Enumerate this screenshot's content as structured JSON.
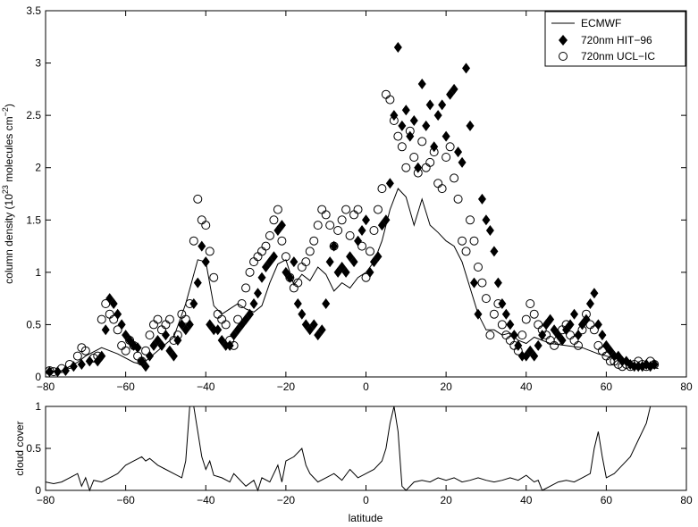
{
  "chart_data": [
    {
      "type": "scatter",
      "ylabel_main": "column density (10",
      "ylabel_sup1": "23",
      "ylabel_mid": " molecules cm",
      "ylabel_sup2": "−2",
      "ylabel_end": ")",
      "xlabel": "",
      "xlim": [
        -80,
        80
      ],
      "ylim": [
        0,
        3.5
      ],
      "xticks": [
        "−80",
        "−60",
        "−40",
        "−20",
        "0",
        "20",
        "40",
        "60",
        "80"
      ],
      "yticks": [
        "0",
        "0.5",
        "1",
        "1.5",
        "2",
        "2.5",
        "3",
        "3.5"
      ],
      "legend_position": "top-right",
      "legend": [
        "ECMWF",
        "720nm HIT−96",
        "720nm UCL−IC"
      ],
      "series": [
        {
          "name": "ECMWF",
          "mark": "line",
          "x": [
            -80,
            -76,
            -72,
            -70,
            -66,
            -62,
            -58,
            -56,
            -52,
            -48,
            -45,
            -42,
            -40,
            -38,
            -36,
            -32,
            -30,
            -28,
            -26,
            -24,
            -22,
            -20,
            -18,
            -16,
            -14,
            -12,
            -10,
            -8,
            -6,
            -4,
            -2,
            0,
            2,
            4,
            6,
            8,
            10,
            12,
            14,
            16,
            18,
            20,
            22,
            24,
            26,
            28,
            30,
            32,
            34,
            36,
            38,
            40,
            42,
            44,
            46,
            50,
            54,
            58,
            62,
            66,
            70,
            73
          ],
          "y": [
            0.05,
            0.06,
            0.14,
            0.2,
            0.28,
            0.22,
            0.14,
            0.12,
            0.25,
            0.38,
            0.7,
            1.12,
            1.1,
            0.68,
            0.6,
            0.7,
            0.65,
            0.62,
            0.68,
            0.9,
            1.08,
            1.12,
            0.88,
            0.98,
            0.92,
            1.05,
            0.98,
            0.82,
            0.9,
            0.85,
            0.95,
            1.0,
            1.1,
            1.3,
            1.6,
            1.8,
            1.72,
            1.45,
            1.7,
            1.45,
            1.38,
            1.3,
            1.25,
            1.1,
            0.85,
            0.6,
            0.45,
            0.45,
            0.4,
            0.42,
            0.35,
            0.32,
            0.38,
            0.35,
            0.32,
            0.3,
            0.28,
            0.22,
            0.18,
            0.12,
            0.1,
            0.08
          ]
        },
        {
          "name": "720nm HIT−96",
          "mark": "diamond",
          "x": [
            -79,
            -77,
            -75,
            -73,
            -71,
            -69,
            -67,
            -66,
            -65,
            -64,
            -63,
            -62,
            -61,
            -60,
            -59,
            -58,
            -57,
            -56,
            -55,
            -54,
            -53,
            -52,
            -51,
            -50,
            -49,
            -48,
            -47,
            -46,
            -45,
            -44,
            -43,
            -42,
            -41,
            -40,
            -39,
            -38,
            -37,
            -36,
            -35,
            -34,
            -33,
            -32,
            -31,
            -30,
            -29,
            -28,
            -27,
            -26,
            -25,
            -24,
            -23,
            -22,
            -21,
            -20,
            -19,
            -18,
            -17,
            -16,
            -15,
            -14,
            -13,
            -12,
            -11,
            -10,
            -9,
            -8,
            -7,
            -6,
            -5,
            -4,
            -3,
            -2,
            -1,
            0,
            1,
            2,
            3,
            4,
            5,
            6,
            7,
            8,
            9,
            10,
            11,
            12,
            13,
            14,
            15,
            16,
            17,
            18,
            19,
            20,
            21,
            22,
            23,
            24,
            25,
            26,
            27,
            28,
            29,
            30,
            31,
            32,
            33,
            34,
            35,
            36,
            37,
            38,
            39,
            40,
            41,
            42,
            43,
            44,
            45,
            46,
            47,
            48,
            49,
            50,
            51,
            52,
            53,
            54,
            55,
            56,
            57,
            58,
            59,
            60,
            61,
            62,
            63,
            64,
            65,
            66,
            67,
            68,
            69,
            70,
            71,
            72
          ],
          "y": [
            0.05,
            0.05,
            0.06,
            0.1,
            0.12,
            0.15,
            0.15,
            0.2,
            0.45,
            0.75,
            0.7,
            0.6,
            0.5,
            0.4,
            0.35,
            0.3,
            0.28,
            0.15,
            0.1,
            0.2,
            0.3,
            0.35,
            0.3,
            0.4,
            0.25,
            0.2,
            0.35,
            0.5,
            0.45,
            0.5,
            0.7,
            0.9,
            1.25,
            1.1,
            0.5,
            0.45,
            0.45,
            0.35,
            0.3,
            0.3,
            0.4,
            0.45,
            0.5,
            0.55,
            0.6,
            0.7,
            0.8,
            0.95,
            1.05,
            1.1,
            1.15,
            1.4,
            1.45,
            1.0,
            0.95,
            1.1,
            0.7,
            0.6,
            0.5,
            0.45,
            0.5,
            0.4,
            0.45,
            0.7,
            1.1,
            1.25,
            1.0,
            1.05,
            1.0,
            1.15,
            1.1,
            1.3,
            1.4,
            1.5,
            1.0,
            1.1,
            1.15,
            1.45,
            1.5,
            1.85,
            2.5,
            3.15,
            2.4,
            2.55,
            2.3,
            2.45,
            2.0,
            2.8,
            2.4,
            2.6,
            2.2,
            2.5,
            2.6,
            2.3,
            2.7,
            2.75,
            2.15,
            2.05,
            2.95,
            2.4,
            0.9,
            0.6,
            1.7,
            1.5,
            1.4,
            1.2,
            0.9,
            0.7,
            0.6,
            0.5,
            0.4,
            0.3,
            0.2,
            0.2,
            0.25,
            0.2,
            0.3,
            0.4,
            0.5,
            0.55,
            0.45,
            0.4,
            0.35,
            0.45,
            0.5,
            0.6,
            0.4,
            0.5,
            0.55,
            0.7,
            0.8,
            0.5,
            0.4,
            0.3,
            0.25,
            0.2,
            0.2,
            0.15,
            0.15,
            0.12,
            0.1,
            0.1,
            0.1,
            0.12,
            0.1,
            0.12
          ]
        },
        {
          "name": "720nm UCL−IC",
          "mark": "circle",
          "x": [
            -79,
            -78,
            -76,
            -74,
            -72,
            -71,
            -70,
            -68,
            -67,
            -66,
            -65,
            -64,
            -63,
            -62,
            -61,
            -60,
            -59,
            -58,
            -57,
            -56,
            -55,
            -54,
            -53,
            -52,
            -51,
            -50,
            -49,
            -48,
            -47,
            -46,
            -45,
            -44,
            -43,
            -42,
            -41,
            -40,
            -39,
            -38,
            -37,
            -36,
            -35,
            -34,
            -33,
            -32,
            -31,
            -30,
            -29,
            -28,
            -27,
            -26,
            -25,
            -24,
            -23,
            -22,
            -21,
            -20,
            -19,
            -18,
            -17,
            -16,
            -15,
            -14,
            -13,
            -12,
            -11,
            -10,
            -9,
            -8,
            -7,
            -6,
            -5,
            -4,
            -3,
            -2,
            -1,
            0,
            1,
            2,
            3,
            4,
            5,
            6,
            7,
            8,
            9,
            10,
            11,
            12,
            13,
            14,
            15,
            16,
            17,
            18,
            19,
            20,
            21,
            22,
            23,
            24,
            25,
            26,
            27,
            28,
            29,
            30,
            31,
            32,
            33,
            34,
            35,
            36,
            37,
            38,
            39,
            40,
            41,
            42,
            43,
            44,
            45,
            46,
            47,
            48,
            49,
            50,
            51,
            52,
            53,
            54,
            55,
            56,
            57,
            58,
            59,
            60,
            61,
            62,
            63,
            64,
            65,
            66,
            67,
            68,
            69,
            70,
            71,
            72
          ],
          "y": [
            0.06,
            0.05,
            0.08,
            0.12,
            0.2,
            0.28,
            0.25,
            0.18,
            0.2,
            0.55,
            0.7,
            0.6,
            0.55,
            0.45,
            0.3,
            0.25,
            0.35,
            0.3,
            0.2,
            0.15,
            0.25,
            0.4,
            0.5,
            0.55,
            0.45,
            0.5,
            0.55,
            0.35,
            0.4,
            0.6,
            0.55,
            0.7,
            1.3,
            1.7,
            1.5,
            1.45,
            1.2,
            0.95,
            0.6,
            0.55,
            0.5,
            0.35,
            0.3,
            0.55,
            0.7,
            0.85,
            1.0,
            1.1,
            1.15,
            1.2,
            1.25,
            1.35,
            1.5,
            1.6,
            1.3,
            1.15,
            0.95,
            0.85,
            0.9,
            1.05,
            1.1,
            1.2,
            1.3,
            1.45,
            1.6,
            1.55,
            1.45,
            1.25,
            1.4,
            1.5,
            1.6,
            1.35,
            1.55,
            1.6,
            1.25,
            0.95,
            1.2,
            1.4,
            1.6,
            1.8,
            2.7,
            2.65,
            2.45,
            2.3,
            2.2,
            2.0,
            2.35,
            2.1,
            1.95,
            2.25,
            2.0,
            2.05,
            2.15,
            1.85,
            1.8,
            2.1,
            2.2,
            1.9,
            1.7,
            1.3,
            1.2,
            1.5,
            1.3,
            1.05,
            0.9,
            0.75,
            0.4,
            0.6,
            0.7,
            0.5,
            0.4,
            0.35,
            0.3,
            0.25,
            0.4,
            0.55,
            0.7,
            0.6,
            0.5,
            0.45,
            0.4,
            0.35,
            0.3,
            0.35,
            0.45,
            0.5,
            0.4,
            0.35,
            0.3,
            0.45,
            0.6,
            0.5,
            0.45,
            0.3,
            0.25,
            0.2,
            0.15,
            0.15,
            0.12,
            0.1,
            0.12,
            0.1,
            0.12,
            0.15,
            0.12,
            0.1,
            0.15,
            0.12
          ]
        }
      ]
    },
    {
      "type": "line",
      "ylabel": "cloud cover",
      "xlabel": "latitude",
      "xlim": [
        -80,
        80
      ],
      "ylim": [
        0,
        1
      ],
      "xticks": [
        "−80",
        "−60",
        "−40",
        "−20",
        "0",
        "20",
        "40",
        "60",
        "80"
      ],
      "yticks": [
        "0",
        "0.5",
        "1"
      ],
      "series": [
        {
          "name": "",
          "x": [
            -80,
            -78,
            -76,
            -74,
            -72,
            -71,
            -70,
            -69,
            -68,
            -66,
            -64,
            -62,
            -60,
            -58,
            -56,
            -55,
            -54,
            -52,
            -50,
            -48,
            -46,
            -45,
            -44,
            -43,
            -42,
            -41,
            -40,
            -39,
            -38,
            -36,
            -34,
            -33,
            -32,
            -30,
            -28,
            -27,
            -26,
            -24,
            -22,
            -21,
            -20,
            -18,
            -16,
            -15,
            -14,
            -13,
            -12,
            -10,
            -8,
            -6,
            -4,
            -2,
            0,
            2,
            4,
            5,
            6,
            7,
            8,
            9,
            10,
            12,
            14,
            16,
            18,
            20,
            22,
            24,
            26,
            28,
            30,
            32,
            34,
            36,
            38,
            40,
            42,
            43,
            44,
            46,
            48,
            50,
            52,
            54,
            56,
            57,
            58,
            59,
            60,
            62,
            64,
            66,
            68,
            70,
            71,
            72,
            73
          ],
          "y": [
            0.1,
            0.08,
            0.1,
            0.15,
            0.2,
            0.05,
            0.15,
            0.0,
            0.12,
            0.1,
            0.15,
            0.2,
            0.3,
            0.35,
            0.4,
            0.35,
            0.38,
            0.3,
            0.25,
            0.2,
            0.15,
            0.35,
            1.0,
            1.0,
            0.7,
            0.4,
            0.25,
            0.35,
            0.18,
            0.15,
            0.1,
            0.2,
            0.15,
            0.05,
            0.12,
            0.0,
            0.15,
            0.1,
            0.3,
            0.1,
            0.35,
            0.4,
            0.5,
            0.3,
            0.2,
            0.15,
            0.1,
            0.15,
            0.2,
            0.12,
            0.25,
            0.15,
            0.2,
            0.25,
            0.35,
            0.5,
            0.8,
            1.0,
            0.7,
            0.05,
            0.0,
            0.1,
            0.12,
            0.1,
            0.15,
            0.12,
            0.15,
            0.1,
            0.12,
            0.15,
            0.12,
            0.1,
            0.12,
            0.15,
            0.12,
            0.18,
            0.1,
            0.12,
            0.0,
            0.05,
            0.1,
            0.12,
            0.1,
            0.15,
            0.2,
            0.5,
            0.7,
            0.4,
            0.15,
            0.2,
            0.3,
            0.4,
            0.6,
            0.8,
            1.0,
            1.0,
            1.0
          ]
        }
      ]
    }
  ]
}
